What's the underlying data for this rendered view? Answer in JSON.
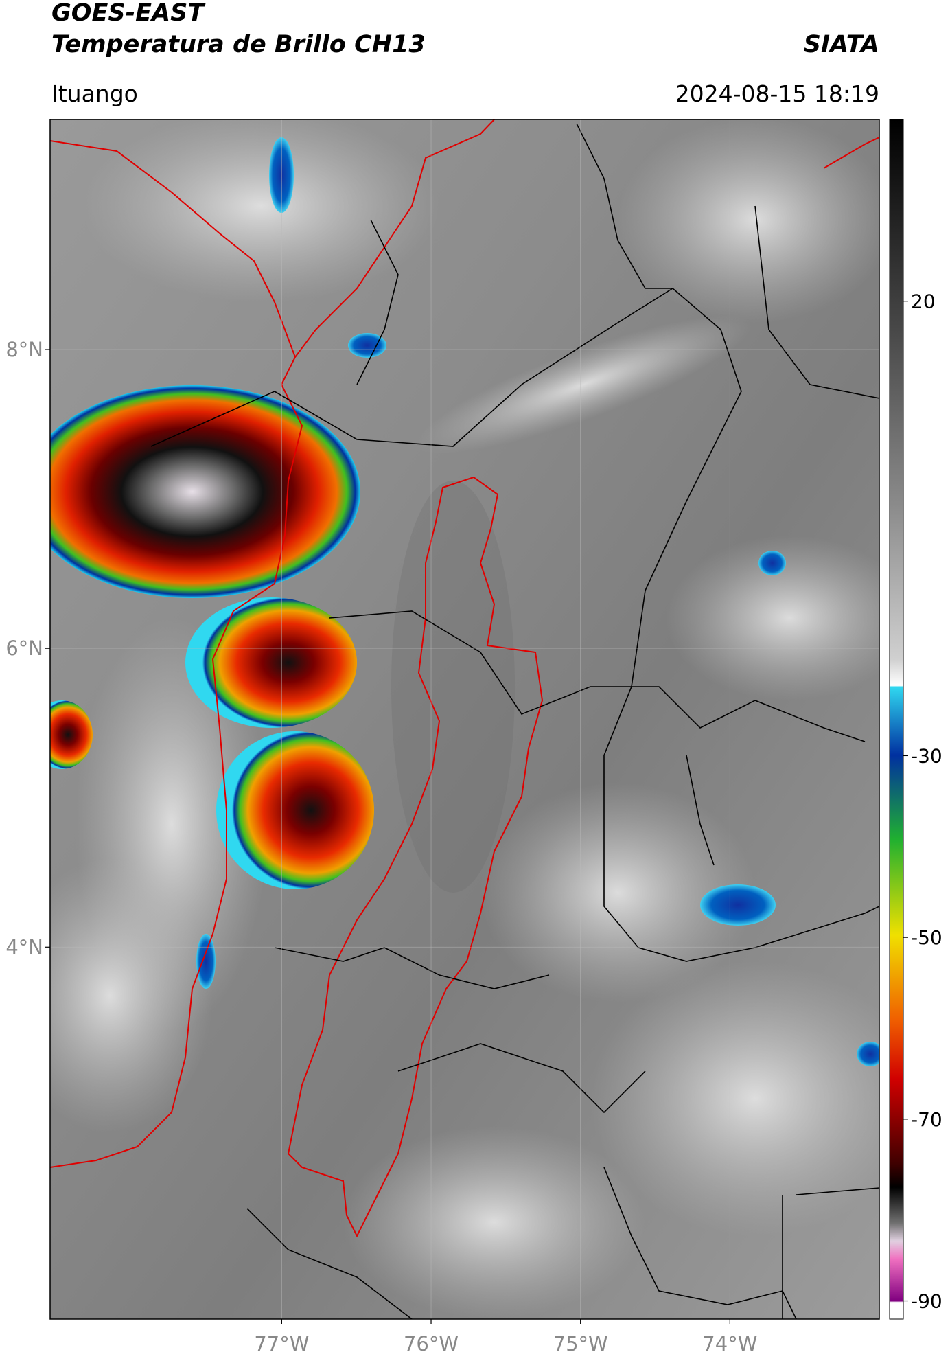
{
  "chart_data": {
    "type": "map",
    "title": "GOES-EAST",
    "subtitle": "Temperatura de Brillo CH13",
    "source": "SIATA",
    "location": "Ituango",
    "datetime": "2024-08-15 18:19",
    "xlim": [
      -78.55,
      -73.0
    ],
    "ylim": [
      1.51,
      9.54
    ],
    "xticks": [
      {
        "value": -77,
        "label": "77°W"
      },
      {
        "value": -76,
        "label": "76°W"
      },
      {
        "value": -75,
        "label": "75°W"
      },
      {
        "value": -74,
        "label": "74°W"
      }
    ],
    "yticks": [
      {
        "value": 8,
        "label": "8°N"
      },
      {
        "value": 6,
        "label": "6°N"
      },
      {
        "value": 4,
        "label": "4°N"
      }
    ],
    "grid": true,
    "colorbar": {
      "lim": [
        -92,
        40
      ],
      "ticks": [
        20,
        -30,
        -50,
        -70,
        -90
      ]
    }
  }
}
